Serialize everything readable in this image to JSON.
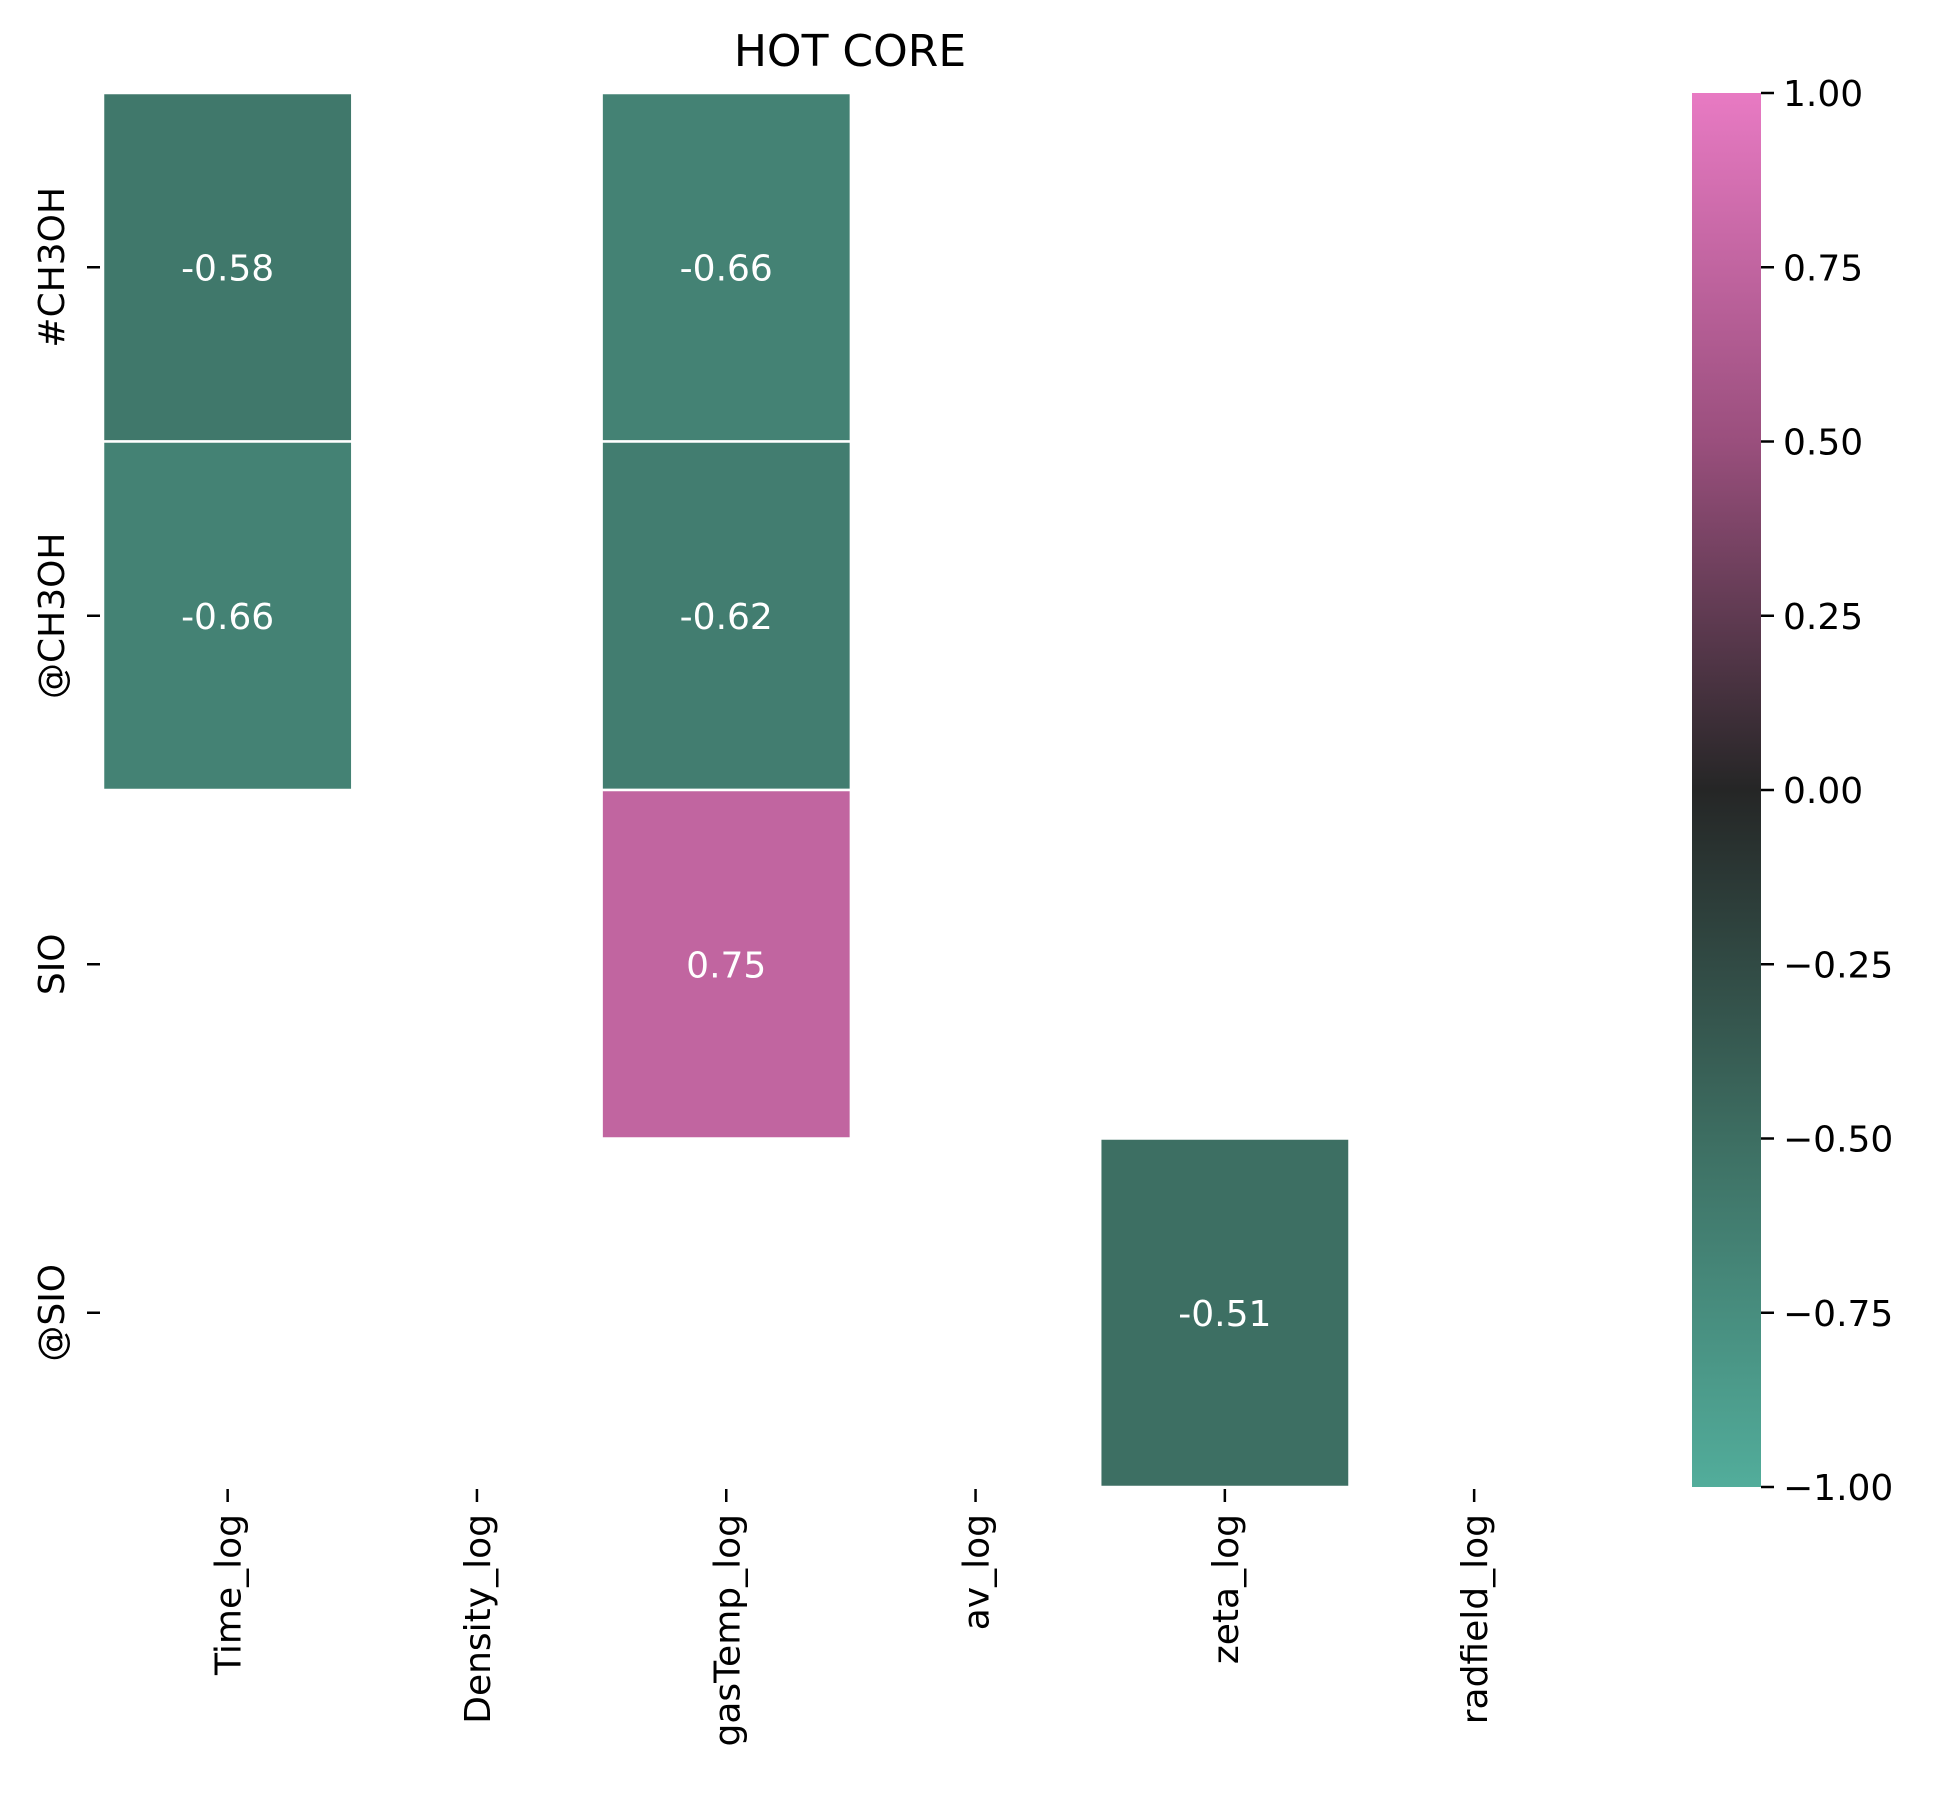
{
  "chart_data": {
    "type": "heatmap",
    "title": "HOT CORE",
    "xlabel": "",
    "ylabel": "",
    "x_categories": [
      "Time_log",
      "Density_log",
      "gasTemp_log",
      "av_log",
      "zeta_log",
      "radfield_log"
    ],
    "y_categories": [
      "#CH3OH",
      "@CH3OH",
      "SIO",
      "@SIO"
    ],
    "values": [
      [
        -0.58,
        null,
        -0.66,
        null,
        null,
        null
      ],
      [
        -0.66,
        null,
        -0.62,
        null,
        null,
        null
      ],
      [
        null,
        null,
        0.75,
        null,
        null,
        null
      ],
      [
        null,
        null,
        null,
        null,
        -0.51,
        null
      ]
    ],
    "cell_labels": [
      [
        "-0.58",
        "",
        "-0.66",
        "",
        "",
        ""
      ],
      [
        "-0.66",
        "",
        "-0.62",
        "",
        "",
        ""
      ],
      [
        "",
        "",
        "0.75",
        "",
        "",
        ""
      ],
      [
        "",
        "",
        "",
        "",
        "-0.51",
        ""
      ]
    ],
    "colorbar": {
      "range": [
        -1.0,
        1.0
      ],
      "ticks": [
        "1.00",
        "0.75",
        "0.50",
        "0.25",
        "0.00",
        "−0.25",
        "−0.50",
        "−0.75",
        "−1.00"
      ],
      "colors": {
        "min": "#52ad9b",
        "neg_mid": "#3d6e62",
        "center": "#252626",
        "pos_mid": "#9a4f7d",
        "max": "#e87ac3"
      }
    },
    "grid": false,
    "legend": "colorbar-right"
  }
}
